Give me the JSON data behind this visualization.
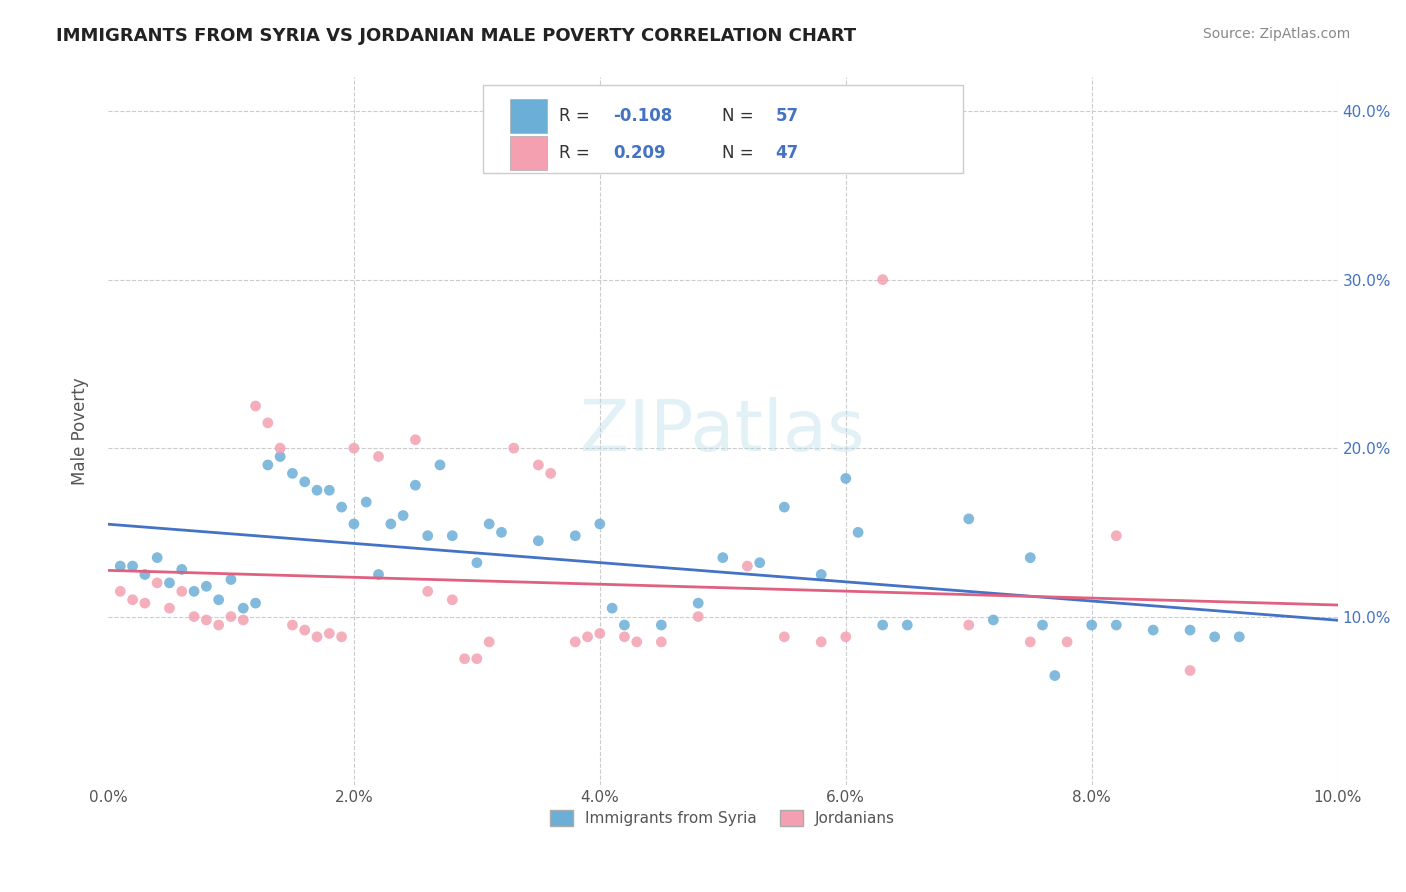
{
  "title": "IMMIGRANTS FROM SYRIA VS JORDANIAN MALE POVERTY CORRELATION CHART",
  "source": "Source: ZipAtlas.com",
  "ylabel": "Male Poverty",
  "xmin": 0.0,
  "xmax": 0.1,
  "ymin": 0.0,
  "ymax": 0.42,
  "yticks": [
    0.1,
    0.2,
    0.3,
    0.4
  ],
  "ytick_labels": [
    "10.0%",
    "20.0%",
    "30.0%",
    "40.0%"
  ],
  "color_blue": "#6baed6",
  "color_pink": "#f4a0b0",
  "color_blue_line": "#4472c4",
  "color_pink_line": "#e06080",
  "watermark": "ZIPatlas",
  "blue_scatter": [
    [
      0.001,
      0.13
    ],
    [
      0.002,
      0.13
    ],
    [
      0.003,
      0.125
    ],
    [
      0.004,
      0.135
    ],
    [
      0.005,
      0.12
    ],
    [
      0.006,
      0.128
    ],
    [
      0.007,
      0.115
    ],
    [
      0.008,
      0.118
    ],
    [
      0.009,
      0.11
    ],
    [
      0.01,
      0.122
    ],
    [
      0.011,
      0.105
    ],
    [
      0.012,
      0.108
    ],
    [
      0.013,
      0.19
    ],
    [
      0.014,
      0.195
    ],
    [
      0.015,
      0.185
    ],
    [
      0.016,
      0.18
    ],
    [
      0.017,
      0.175
    ],
    [
      0.018,
      0.175
    ],
    [
      0.019,
      0.165
    ],
    [
      0.02,
      0.155
    ],
    [
      0.021,
      0.168
    ],
    [
      0.022,
      0.125
    ],
    [
      0.023,
      0.155
    ],
    [
      0.024,
      0.16
    ],
    [
      0.025,
      0.178
    ],
    [
      0.026,
      0.148
    ],
    [
      0.027,
      0.19
    ],
    [
      0.028,
      0.148
    ],
    [
      0.03,
      0.132
    ],
    [
      0.031,
      0.155
    ],
    [
      0.032,
      0.15
    ],
    [
      0.035,
      0.145
    ],
    [
      0.038,
      0.148
    ],
    [
      0.04,
      0.155
    ],
    [
      0.041,
      0.105
    ],
    [
      0.042,
      0.095
    ],
    [
      0.045,
      0.095
    ],
    [
      0.048,
      0.108
    ],
    [
      0.05,
      0.135
    ],
    [
      0.053,
      0.132
    ],
    [
      0.055,
      0.165
    ],
    [
      0.058,
      0.125
    ],
    [
      0.06,
      0.182
    ],
    [
      0.061,
      0.15
    ],
    [
      0.063,
      0.095
    ],
    [
      0.065,
      0.095
    ],
    [
      0.07,
      0.158
    ],
    [
      0.072,
      0.098
    ],
    [
      0.075,
      0.135
    ],
    [
      0.076,
      0.095
    ],
    [
      0.077,
      0.065
    ],
    [
      0.08,
      0.095
    ],
    [
      0.082,
      0.095
    ],
    [
      0.085,
      0.092
    ],
    [
      0.088,
      0.092
    ],
    [
      0.09,
      0.088
    ],
    [
      0.092,
      0.088
    ]
  ],
  "pink_scatter": [
    [
      0.001,
      0.115
    ],
    [
      0.002,
      0.11
    ],
    [
      0.003,
      0.108
    ],
    [
      0.004,
      0.12
    ],
    [
      0.005,
      0.105
    ],
    [
      0.006,
      0.115
    ],
    [
      0.007,
      0.1
    ],
    [
      0.008,
      0.098
    ],
    [
      0.009,
      0.095
    ],
    [
      0.01,
      0.1
    ],
    [
      0.011,
      0.098
    ],
    [
      0.012,
      0.225
    ],
    [
      0.013,
      0.215
    ],
    [
      0.014,
      0.2
    ],
    [
      0.015,
      0.095
    ],
    [
      0.016,
      0.092
    ],
    [
      0.017,
      0.088
    ],
    [
      0.018,
      0.09
    ],
    [
      0.019,
      0.088
    ],
    [
      0.02,
      0.2
    ],
    [
      0.022,
      0.195
    ],
    [
      0.025,
      0.205
    ],
    [
      0.026,
      0.115
    ],
    [
      0.028,
      0.11
    ],
    [
      0.029,
      0.075
    ],
    [
      0.03,
      0.075
    ],
    [
      0.031,
      0.085
    ],
    [
      0.033,
      0.2
    ],
    [
      0.035,
      0.19
    ],
    [
      0.036,
      0.185
    ],
    [
      0.038,
      0.085
    ],
    [
      0.039,
      0.088
    ],
    [
      0.04,
      0.09
    ],
    [
      0.042,
      0.088
    ],
    [
      0.043,
      0.085
    ],
    [
      0.045,
      0.085
    ],
    [
      0.048,
      0.1
    ],
    [
      0.052,
      0.13
    ],
    [
      0.055,
      0.088
    ],
    [
      0.058,
      0.085
    ],
    [
      0.06,
      0.088
    ],
    [
      0.063,
      0.3
    ],
    [
      0.07,
      0.095
    ],
    [
      0.075,
      0.085
    ],
    [
      0.078,
      0.085
    ],
    [
      0.082,
      0.148
    ],
    [
      0.088,
      0.068
    ]
  ]
}
